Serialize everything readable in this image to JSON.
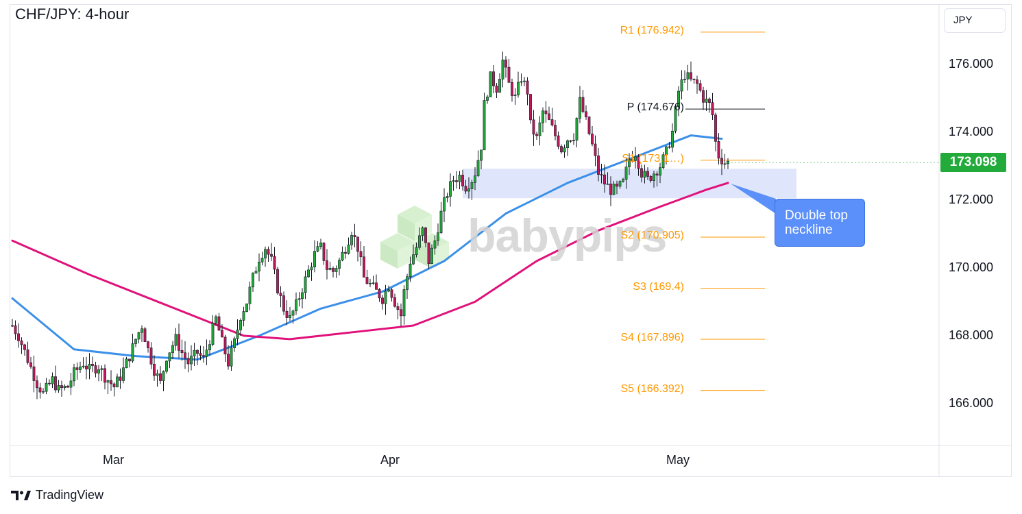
{
  "title": "CHF/JPY: 4-hour",
  "currency_button": "JPY",
  "watermark": "babypips",
  "footer": {
    "brand": "TradingView"
  },
  "current_price": "173.098",
  "annotation": {
    "line1": "Double top",
    "line2": "neckline"
  },
  "colors": {
    "up": "#22ab3a",
    "down": "#c2185b",
    "sma_fast": "#3b8fe8",
    "sma_slow": "#e0117a",
    "pivot": "#ff9800",
    "zone": "#dfe6fb",
    "accent": "#5b8ff9"
  },
  "chart_data": {
    "type": "candlestick",
    "title": "CHF/JPY: 4-hour",
    "x_ticks": [
      "Mar",
      "Apr",
      "May"
    ],
    "y_ticks": [
      "176.000",
      "174.000",
      "172.000",
      "170.000",
      "168.000",
      "166.000"
    ],
    "ylim": [
      165.0,
      177.6
    ],
    "last_price": 173.098,
    "pivots": [
      {
        "name": "R1",
        "label": "R1 (176.942)",
        "value": 176.942
      },
      {
        "name": "P",
        "label": "P (174.676)",
        "value": 174.676
      },
      {
        "name": "S1",
        "label": "S1 (173.1…)",
        "value": 173.17
      },
      {
        "name": "S2",
        "label": "S2 (170.905)",
        "value": 170.905
      },
      {
        "name": "S3",
        "label": "S3 (169.4)",
        "value": 169.4
      },
      {
        "name": "S4",
        "label": "S4 (167.896)",
        "value": 167.896
      },
      {
        "name": "S5",
        "label": "S5 (166.392)",
        "value": 166.392
      }
    ],
    "support_zone": {
      "from": 172.05,
      "to": 172.92
    },
    "price_path_points": [
      [
        0,
        168.3
      ],
      [
        2,
        168.0
      ],
      [
        5,
        167.3
      ],
      [
        8,
        166.6
      ],
      [
        10,
        166.3
      ],
      [
        13,
        166.7
      ],
      [
        15,
        166.4
      ],
      [
        18,
        166.5
      ],
      [
        20,
        166.9
      ],
      [
        23,
        167.2
      ],
      [
        25,
        167.0
      ],
      [
        28,
        167.1
      ],
      [
        30,
        166.8
      ],
      [
        33,
        166.5
      ],
      [
        35,
        166.8
      ],
      [
        38,
        167.4
      ],
      [
        40,
        167.9
      ],
      [
        42,
        168.3
      ],
      [
        44,
        167.6
      ],
      [
        46,
        167.0
      ],
      [
        48,
        166.6
      ],
      [
        50,
        167.4
      ],
      [
        53,
        167.9
      ],
      [
        55,
        167.5
      ],
      [
        57,
        167.2
      ],
      [
        60,
        167.5
      ],
      [
        62,
        167.3
      ],
      [
        64,
        167.9
      ],
      [
        66,
        168.5
      ],
      [
        68,
        167.8
      ],
      [
        70,
        167.2
      ],
      [
        72,
        167.8
      ],
      [
        74,
        168.6
      ],
      [
        76,
        169.0
      ],
      [
        78,
        169.7
      ],
      [
        80,
        170.3
      ],
      [
        82,
        170.6
      ],
      [
        84,
        170.2
      ],
      [
        86,
        169.4
      ],
      [
        88,
        168.8
      ],
      [
        90,
        168.5
      ],
      [
        92,
        168.9
      ],
      [
        94,
        169.4
      ],
      [
        96,
        169.9
      ],
      [
        98,
        170.4
      ],
      [
        100,
        170.6
      ],
      [
        102,
        170.0
      ],
      [
        104,
        169.9
      ],
      [
        106,
        170.2
      ],
      [
        108,
        170.6
      ],
      [
        110,
        171.1
      ],
      [
        112,
        170.6
      ],
      [
        114,
        169.7
      ],
      [
        116,
        169.5
      ],
      [
        118,
        169.3
      ],
      [
        120,
        169.1
      ],
      [
        122,
        169.5
      ],
      [
        124,
        169.0
      ],
      [
        126,
        168.6
      ],
      [
        127,
        169.3
      ],
      [
        129,
        170.2
      ],
      [
        131,
        170.6
      ],
      [
        133,
        171.1
      ],
      [
        135,
        170.2
      ],
      [
        137,
        170.8
      ],
      [
        139,
        171.6
      ],
      [
        141,
        172.2
      ],
      [
        143,
        172.6
      ],
      [
        145,
        172.7
      ],
      [
        147,
        172.4
      ],
      [
        149,
        172.6
      ],
      [
        150,
        172.8
      ],
      [
        152,
        173.6
      ],
      [
        153,
        174.8
      ],
      [
        155,
        175.6
      ],
      [
        157,
        175.3
      ],
      [
        159,
        176.1
      ],
      [
        161,
        175.4
      ],
      [
        163,
        175.0
      ],
      [
        165,
        175.6
      ],
      [
        167,
        175.2
      ],
      [
        168,
        174.2
      ],
      [
        170,
        173.8
      ],
      [
        172,
        174.6
      ],
      [
        174,
        174.3
      ],
      [
        176,
        173.9
      ],
      [
        178,
        173.5
      ],
      [
        180,
        173.8
      ],
      [
        182,
        173.9
      ],
      [
        184,
        174.9
      ],
      [
        186,
        174.3
      ],
      [
        188,
        173.6
      ],
      [
        190,
        172.8
      ],
      [
        192,
        172.5
      ],
      [
        194,
        172.3
      ],
      [
        196,
        172.3
      ],
      [
        198,
        172.5
      ],
      [
        200,
        173.2
      ],
      [
        202,
        173.4
      ],
      [
        204,
        172.8
      ],
      [
        206,
        172.6
      ],
      [
        208,
        172.8
      ],
      [
        210,
        173.0
      ],
      [
        212,
        173.4
      ],
      [
        214,
        174.0
      ],
      [
        216,
        175.2
      ],
      [
        218,
        175.7
      ],
      [
        220,
        175.5
      ],
      [
        222,
        175.4
      ],
      [
        224,
        175.0
      ],
      [
        226,
        174.8
      ],
      [
        227,
        174.5
      ],
      [
        228,
        173.7
      ],
      [
        229,
        173.3
      ],
      [
        231,
        173.1
      ],
      [
        232,
        173.098
      ]
    ],
    "series": [
      {
        "name": "",
        "type": "moving-average",
        "points": [
          [
            0,
            169.1
          ],
          [
            20,
            167.6
          ],
          [
            40,
            167.4
          ],
          [
            60,
            167.3
          ],
          [
            80,
            168.0
          ],
          [
            100,
            168.8
          ],
          [
            120,
            169.3
          ],
          [
            140,
            170.2
          ],
          [
            160,
            171.6
          ],
          [
            180,
            172.5
          ],
          [
            200,
            173.2
          ],
          [
            220,
            173.9
          ],
          [
            230,
            173.8
          ]
        ]
      },
      {
        "name": "",
        "type": "moving-average",
        "points": [
          [
            0,
            170.8
          ],
          [
            25,
            169.8
          ],
          [
            50,
            168.9
          ],
          [
            75,
            168.0
          ],
          [
            90,
            167.9
          ],
          [
            110,
            168.1
          ],
          [
            130,
            168.3
          ],
          [
            150,
            169.0
          ],
          [
            170,
            170.2
          ],
          [
            190,
            171.1
          ],
          [
            210,
            171.8
          ],
          [
            225,
            172.3
          ],
          [
            232,
            172.5
          ]
        ]
      }
    ],
    "grid": false,
    "legend": "none"
  }
}
